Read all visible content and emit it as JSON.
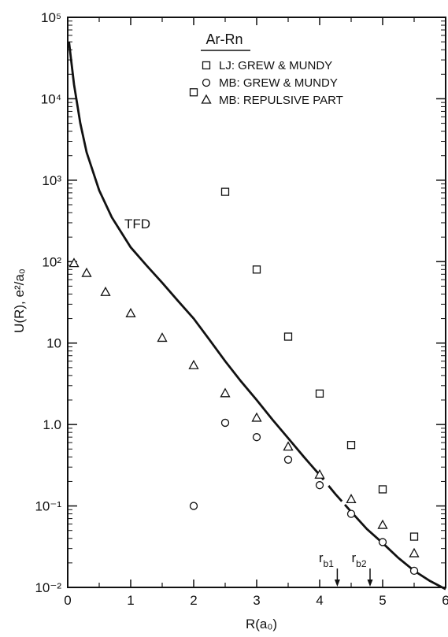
{
  "chart_data": {
    "type": "scatter",
    "title": "Ar-Rn",
    "xlabel": "R(a₀)",
    "ylabel": "U(R), e²/a₀",
    "xlim": [
      0,
      6
    ],
    "ylim": [
      0.01,
      100000
    ],
    "y_scale": "log",
    "x_ticks": [
      0,
      1,
      2,
      3,
      4,
      5,
      6
    ],
    "x_tick_labels": [
      "0",
      "1",
      "2",
      "3",
      "4",
      "5",
      "6"
    ],
    "y_ticks": [
      0.01,
      0.1,
      1,
      10,
      100,
      1000,
      10000,
      100000
    ],
    "y_tick_labels": [
      "10⁻²",
      "10⁻¹",
      "1.0",
      "10",
      "10²",
      "10³",
      "10⁴",
      "10⁵"
    ],
    "legend_position": "top-right",
    "series": [
      {
        "name": "LJ: GREW & MUNDY",
        "marker": "square",
        "x": [
          2.0,
          2.5,
          3.0,
          3.5,
          4.0,
          4.5,
          5.0,
          5.5
        ],
        "y": [
          12000,
          720,
          80,
          12,
          2.4,
          0.56,
          0.16,
          0.042
        ]
      },
      {
        "name": "MB: GREW & MUNDY",
        "marker": "circle",
        "x": [
          2.0,
          2.5,
          3.0,
          3.5,
          4.0,
          4.5,
          5.0,
          5.5
        ],
        "y": [
          0.1,
          1.05,
          0.7,
          0.37,
          0.18,
          0.08,
          0.036,
          0.016
        ]
      },
      {
        "name": "MB: REPULSIVE PART",
        "marker": "triangle",
        "x": [
          0.1,
          0.3,
          0.6,
          1.0,
          1.5,
          2.0,
          2.5,
          3.0,
          3.5,
          4.0,
          4.5,
          5.0,
          5.5
        ],
        "y": [
          95,
          72,
          42,
          23,
          11.5,
          5.3,
          2.4,
          1.2,
          0.53,
          0.24,
          0.12,
          0.058,
          0.026
        ]
      }
    ],
    "curve": {
      "name": "TFD",
      "x": [
        0.02,
        0.1,
        0.2,
        0.3,
        0.5,
        0.7,
        1.0,
        1.25,
        1.5,
        1.75,
        2.0,
        2.25,
        2.5,
        2.75,
        3.0,
        3.25,
        3.5,
        3.75,
        4.0,
        4.25,
        4.5,
        4.75,
        5.0,
        5.25,
        5.5,
        5.75,
        6.0
      ],
      "y": [
        50000,
        15000,
        5000,
        2200,
        750,
        350,
        150,
        90,
        55,
        33,
        20,
        11,
        6.0,
        3.4,
        2.0,
        1.15,
        0.68,
        0.4,
        0.24,
        0.14,
        0.085,
        0.052,
        0.035,
        0.023,
        0.016,
        0.012,
        0.0095
      ],
      "dashed_segment": [
        3.85,
        4.4
      ]
    },
    "annotations": [
      {
        "label_main": "r",
        "label_sub": "b1",
        "x": 4.28
      },
      {
        "label_main": "r",
        "label_sub": "b2",
        "x": 4.8
      }
    ],
    "curve_label": "TFD"
  }
}
